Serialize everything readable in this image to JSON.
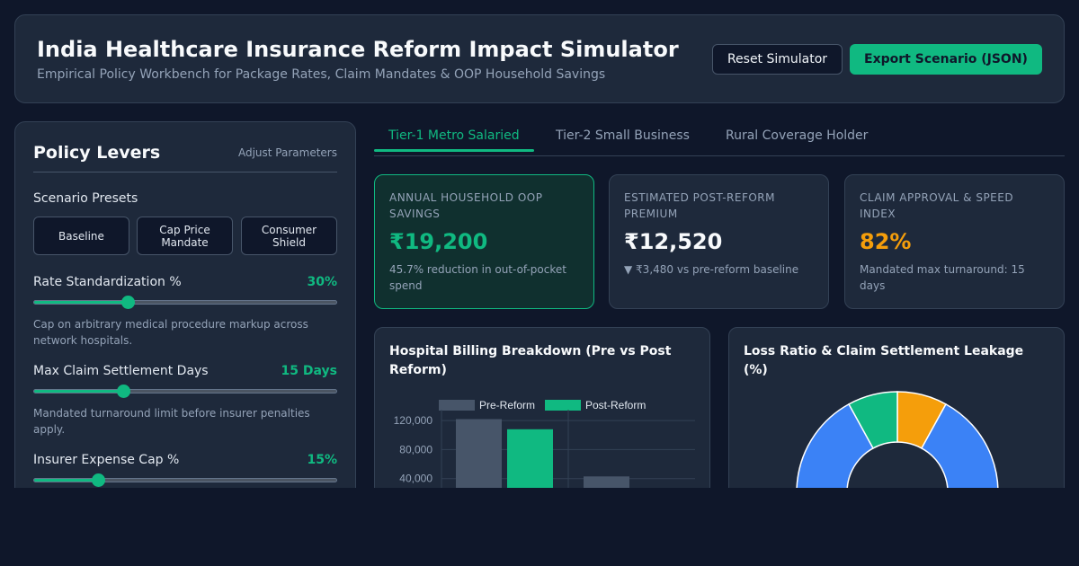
{
  "header": {
    "title": "India Healthcare Insurance Reform Impact Simulator",
    "subtitle": "Empirical Policy Workbench for Package Rates, Claim Mandates & OOP Household Savings",
    "reset_label": "Reset Simulator",
    "export_label": "Export Scenario (JSON)"
  },
  "levers": {
    "title": "Policy Levers",
    "adjust_label": "Adjust Parameters",
    "presets_label": "Scenario Presets",
    "presets": [
      "Baseline",
      "Cap Price Mandate",
      "Consumer Shield"
    ],
    "sliders": [
      {
        "label": "Rate Standardization %",
        "value_text": "30%",
        "fill_fraction": 0.31,
        "description": "Cap on arbitrary medical procedure markup across network hospitals."
      },
      {
        "label": "Max Claim Settlement Days",
        "value_text": "15 Days",
        "fill_fraction": 0.295,
        "description": "Mandated turnaround limit before insurer penalties apply."
      },
      {
        "label": "Insurer Expense Cap %",
        "value_text": "15%",
        "fill_fraction": 0.21,
        "description": ""
      }
    ]
  },
  "tabs": [
    "Tier-1 Metro Salaried",
    "Tier-2 Small Business",
    "Rural Coverage Holder"
  ],
  "kpis": [
    {
      "label": "Annual Household OOP Savings",
      "value": "₹19,200",
      "note": "45.7% reduction in out-of-pocket spend",
      "color": "#10b981"
    },
    {
      "label": "Estimated Post-Reform Premium",
      "value": "₹12,520",
      "note": "▼ ₹3,480 vs pre-reform baseline",
      "color": "#f8fafc"
    },
    {
      "label": "Claim Approval & Speed Index",
      "value": "82%",
      "note": "Mandated max turnaround: 15 days",
      "color": "#f59e0b"
    }
  ],
  "billing_card": {
    "title": "Hospital Billing Breakdown (Pre vs Post Reform)"
  },
  "loss_card": {
    "title": "Loss Ratio & Claim Settlement Leakage (%)"
  },
  "chart_data": [
    {
      "type": "bar",
      "title": "Hospital Billing Breakdown (Pre vs Post Reform)",
      "legend": [
        "Pre-Reform",
        "Post-Reform"
      ],
      "ylim": [
        0,
        135000
      ],
      "yticks": [
        40000,
        80000,
        120000
      ],
      "ytick_labels": [
        "40,000",
        "80,000",
        "120,000"
      ],
      "series": [
        {
          "name": "Pre-Reform",
          "values": [
            122000,
            43000
          ],
          "color": "#475569"
        },
        {
          "name": "Post-Reform",
          "values": [
            108000,
            null
          ],
          "color": "#10b981"
        }
      ]
    },
    {
      "type": "pie",
      "title": "Loss Ratio & Claim Settlement Leakage (%)",
      "slices": [
        {
          "value": 8,
          "color": "#f59e0b"
        },
        {
          "value": 22,
          "color": "#3b82f6"
        },
        {
          "value": 62,
          "color": "#3b82f6"
        },
        {
          "value": 8,
          "color": "#10b981"
        }
      ]
    }
  ]
}
